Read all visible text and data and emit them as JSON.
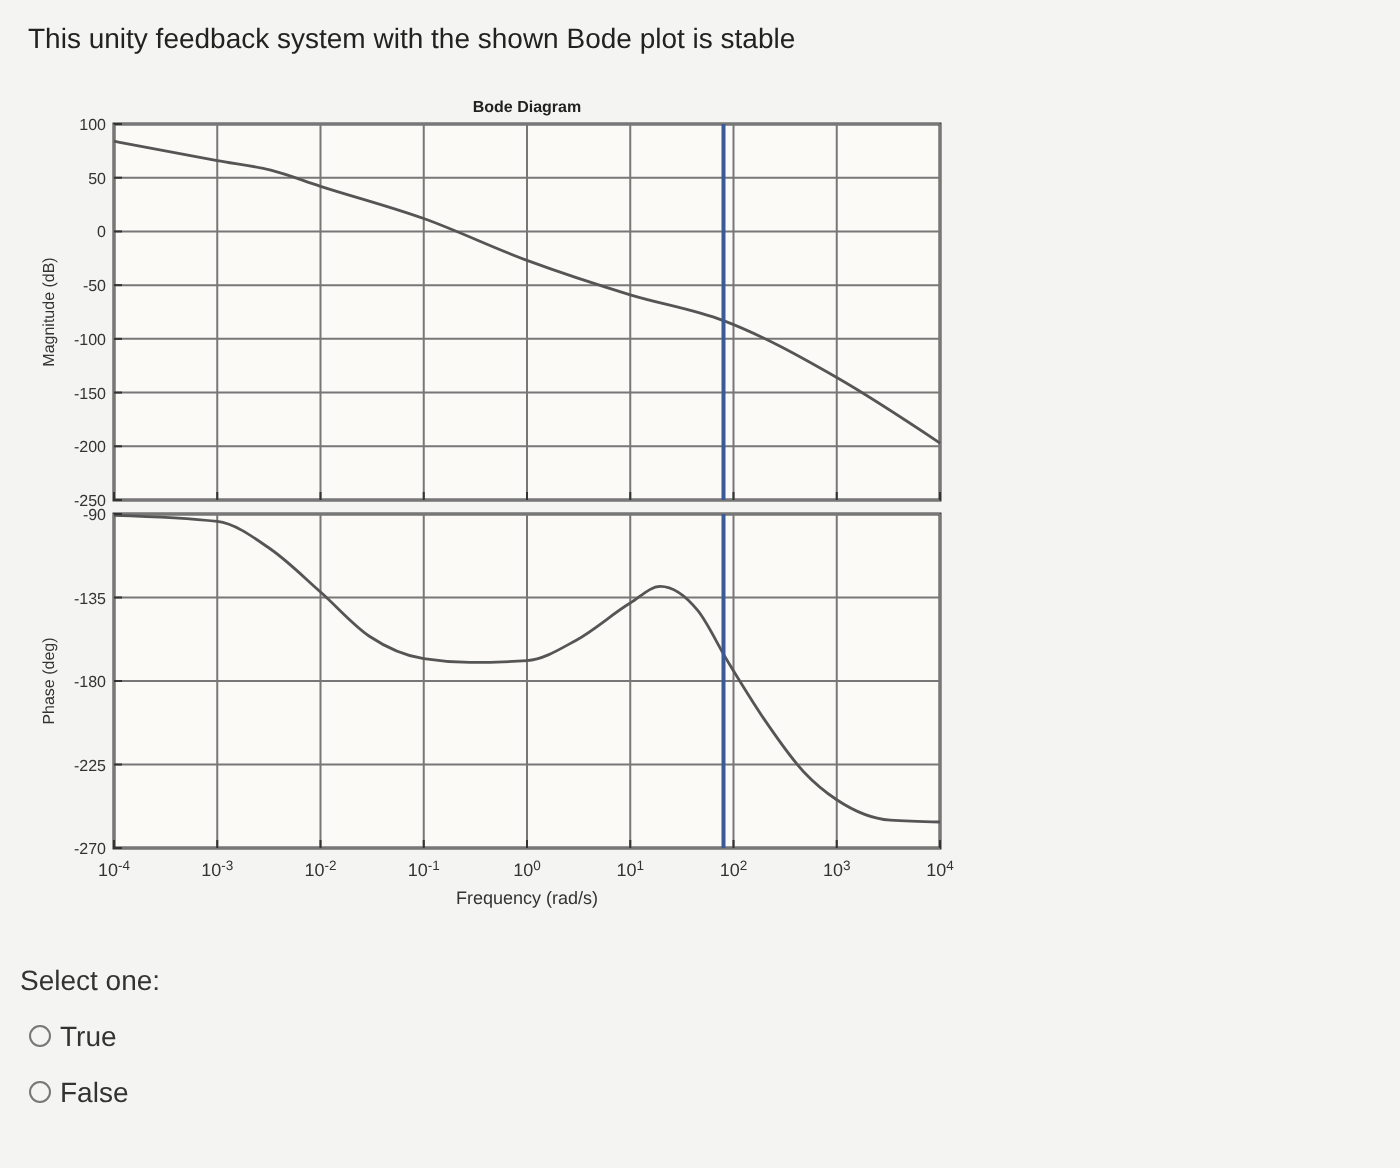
{
  "chart_data": [
    {
      "type": "line",
      "title": "This unity feedback system with the shown Bode plot is stable",
      "subtitle": "Bode Diagram",
      "ylabel": "Magnitude (dB)",
      "log": "x",
      "grid": true,
      "tick_labels": "y",
      "xlim": [
        0.0001,
        10000
      ],
      "ylim": [
        -250,
        100
      ],
      "xticks": [
        {
          "value": 0.0001,
          "label": null
        },
        {
          "value": 0.001,
          "label": null
        },
        {
          "value": 0.01,
          "label": null
        },
        {
          "value": 0.1,
          "label": null
        },
        {
          "value": 1,
          "label": null
        },
        {
          "value": 10,
          "label": null
        },
        {
          "value": 100,
          "label": null
        },
        {
          "value": 1000,
          "label": null
        },
        {
          "value": 10000,
          "label": null
        }
      ],
      "yticks": [
        100,
        50,
        0,
        -50,
        -100,
        -150,
        -200,
        -250
      ],
      "x": [
        0.0001,
        0.001,
        0.0033,
        0.01,
        0.1,
        1,
        10,
        80,
        1000,
        10000
      ],
      "series": [
        {
          "color": "#555555",
          "values": [
            84,
            66,
            57,
            42,
            12,
            -27,
            -59,
            -83,
            -136,
            -197
          ]
        }
      ],
      "ref_lines": [
        {
          "axis": "x",
          "value": 80,
          "color": "#3a5a9a"
        }
      ]
    },
    {
      "type": "line",
      "xlabel": "Frequency (rad/s)",
      "ylabel": "Phase (deg)",
      "log": "x",
      "grid": true,
      "xlim": [
        0.0001,
        10000
      ],
      "ylim": [
        -270,
        -90
      ],
      "xticks": [
        {
          "value": 0.0001,
          "label": "10$^{-4}$"
        },
        {
          "value": 0.001,
          "label": "10$^{-3}$"
        },
        {
          "value": 0.01,
          "label": "10$^{-2}$"
        },
        {
          "value": 0.1,
          "label": "10$^{-1}$"
        },
        {
          "value": 1,
          "label": "10$^{0}$"
        },
        {
          "value": 10,
          "label": "10$^{1}$"
        },
        {
          "value": 100,
          "label": "10$^{2}$"
        },
        {
          "value": 1000,
          "label": "10$^{3}$"
        },
        {
          "value": 10000,
          "label": "10$^{4}$"
        }
      ],
      "yticks": [
        -90,
        -135,
        -180,
        -225,
        -270
      ],
      "x": [
        0.0001,
        0.001,
        0.0033,
        0.01,
        0.03,
        0.1,
        0.28,
        1,
        3,
        10,
        19.5,
        45,
        87,
        195,
        480,
        1000,
        3300,
        10000
      ],
      "series": [
        {
          "color": "#555555",
          "values": [
            -90.7,
            -94,
            -109,
            -132,
            -156,
            -168,
            -170,
            -169,
            -158,
            -138,
            -129,
            -142,
            -169,
            -200,
            -229,
            -244,
            -255,
            -256
          ]
        }
      ],
      "ref_lines": [
        {
          "axis": "x",
          "value": 80,
          "color": "#3a5a9a"
        }
      ],
      "annotations": [
        "Select one:",
        "True",
        "False"
      ]
    }
  ]
}
